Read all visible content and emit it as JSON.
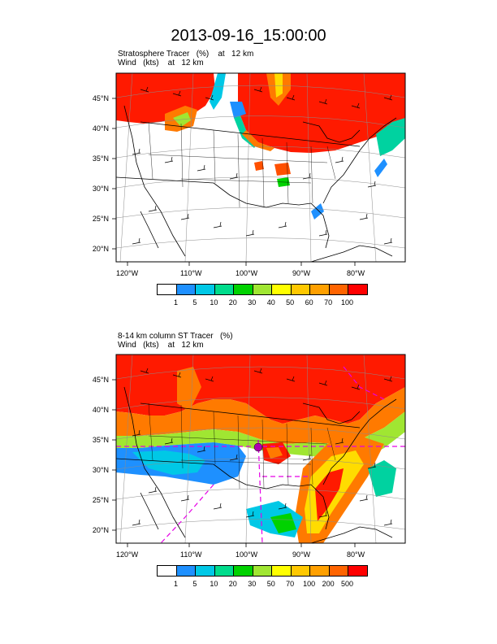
{
  "figure": {
    "title": "2013-09-16_15:00:00"
  },
  "panels": [
    {
      "subtitle_line1": "Stratosphere Tracer   (%)    at   12 km",
      "subtitle_line2": "Wind   (kts)    at   12 km",
      "lat_labels": [
        "45°N",
        "40°N",
        "35°N",
        "30°N",
        "25°N",
        "20°N"
      ],
      "lon_labels": [
        "120°W",
        "110°W",
        "100°W",
        "90°W",
        "80°W"
      ],
      "colorbar_labels": [
        "1",
        "5",
        "10",
        "20",
        "30",
        "40",
        "50",
        "60",
        "70",
        "100"
      ],
      "colorbar_colors": [
        "#ffffff",
        "#1e90ff",
        "#00c8e6",
        "#00dc8c",
        "#00d200",
        "#a0e632",
        "#ffff00",
        "#ffc800",
        "#ffa000",
        "#ff6400",
        "#ff0000"
      ]
    },
    {
      "subtitle_line1": "8-14 km column ST Tracer   (%)",
      "subtitle_line2": "Wind   (kts)    at   12 km",
      "lat_labels": [
        "45°N",
        "40°N",
        "35°N",
        "30°N",
        "25°N",
        "20°N"
      ],
      "lon_labels": [
        "120°W",
        "110°W",
        "100°W",
        "90°W",
        "80°W"
      ],
      "colorbar_labels": [
        "1",
        "5",
        "10",
        "20",
        "30",
        "50",
        "70",
        "100",
        "200",
        "500"
      ],
      "colorbar_colors": [
        "#ffffff",
        "#1e90ff",
        "#00c8e6",
        "#00dc8c",
        "#00d200",
        "#a0e632",
        "#ffff00",
        "#ffc800",
        "#ffa000",
        "#ff6400",
        "#ff0000"
      ]
    }
  ]
}
